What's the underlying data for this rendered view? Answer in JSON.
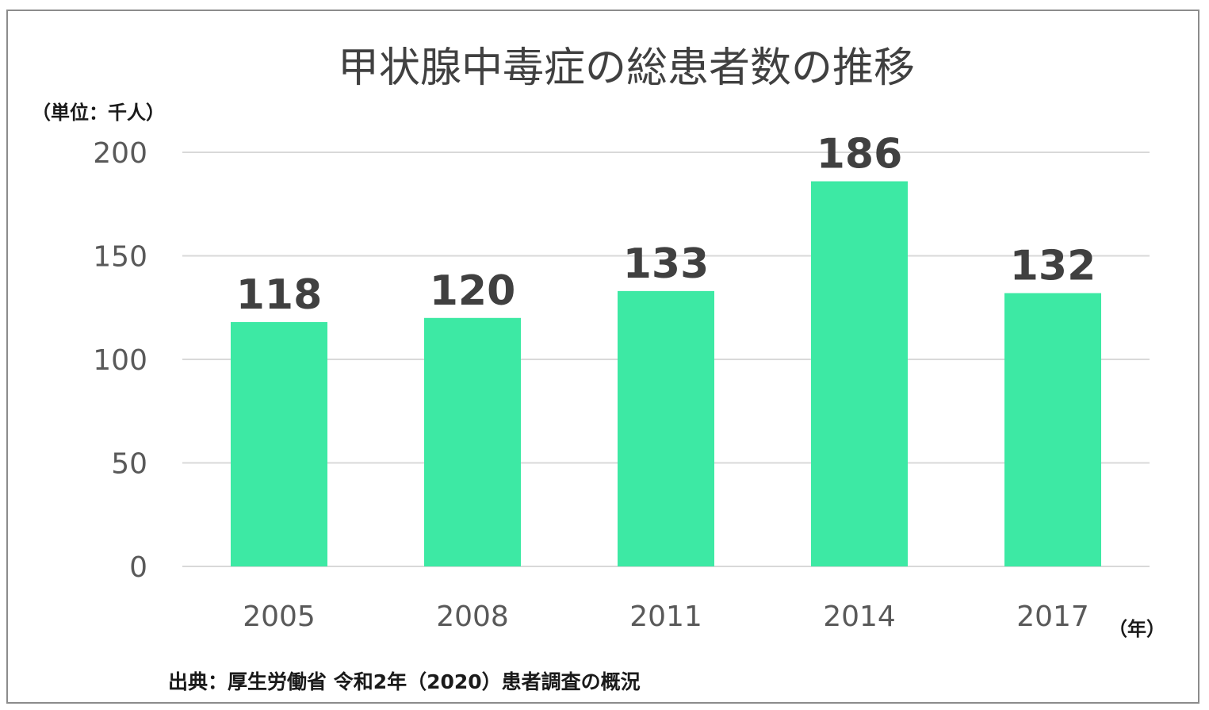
{
  "chart_data": {
    "type": "bar",
    "title": "甲状腺中毒症の総患者数の推移",
    "ylabel": "（単位：千人）",
    "xlabel": "（年）",
    "categories": [
      "2005",
      "2008",
      "2011",
      "2014",
      "2017"
    ],
    "values": [
      118,
      120,
      133,
      186,
      132
    ],
    "ylim": [
      0,
      200
    ],
    "yticks": [
      0,
      50,
      100,
      150,
      200
    ],
    "grid": true,
    "bar_color": "#3de9a4",
    "source": "出典：厚生労働省 令和2年（2020）患者調査の概況"
  }
}
